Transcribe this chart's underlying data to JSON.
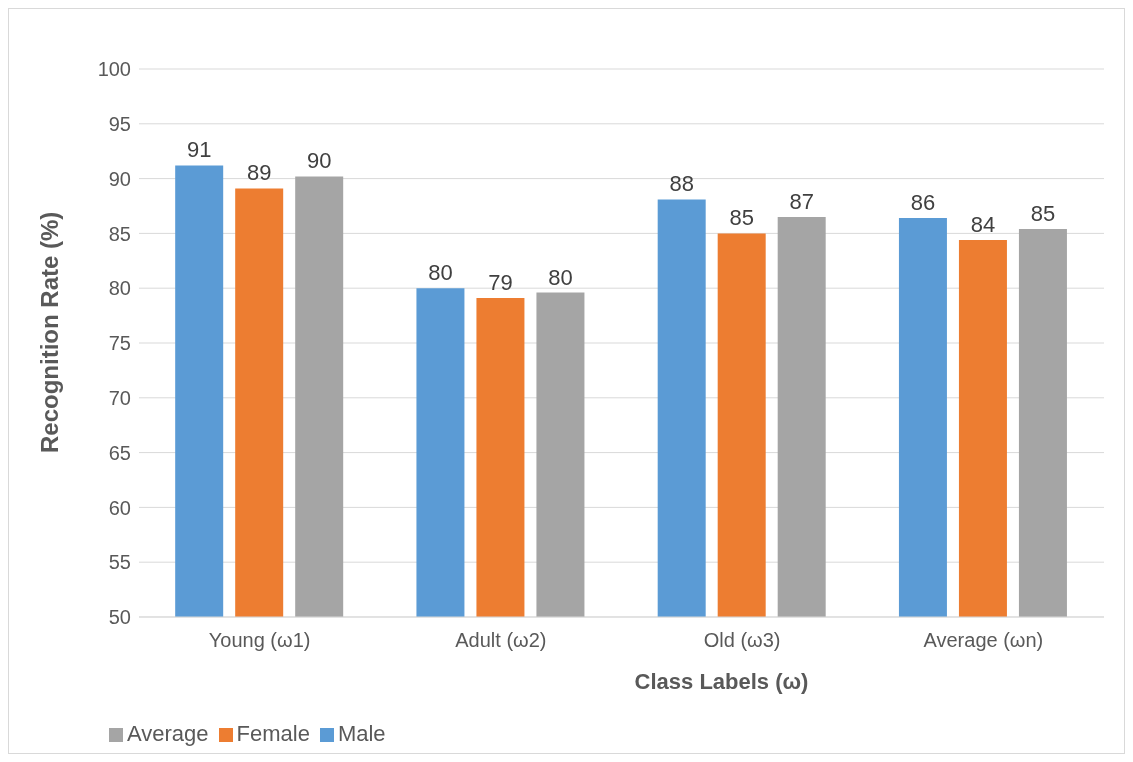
{
  "chart_data": {
    "type": "bar",
    "xlabel": "Class Labels (ω)",
    "ylabel": "Recognition Rate (%)",
    "categories": [
      "Young (ω1)",
      "Adult (ω2)",
      "Old (ω3)",
      "Average (ωn)"
    ],
    "series": [
      {
        "name": "Male",
        "color": "#5b9bd5",
        "values": [
          91.2,
          80.0,
          88.1,
          86.4
        ],
        "value_labels": [
          "91",
          "80",
          "88",
          "86"
        ]
      },
      {
        "name": "Female",
        "color": "#ed7d31",
        "values": [
          89.1,
          79.1,
          85.0,
          84.4
        ],
        "value_labels": [
          "89",
          "79",
          "85",
          "84"
        ]
      },
      {
        "name": "Average",
        "color": "#a5a5a5",
        "values": [
          90.2,
          79.6,
          86.5,
          85.4
        ],
        "value_labels": [
          "90",
          "80",
          "87",
          "85"
        ]
      }
    ],
    "ylim": [
      50,
      100
    ],
    "yticks": [
      50,
      55,
      60,
      65,
      70,
      75,
      80,
      85,
      90,
      95,
      100
    ],
    "grid": "y",
    "legend": "bottom left"
  }
}
